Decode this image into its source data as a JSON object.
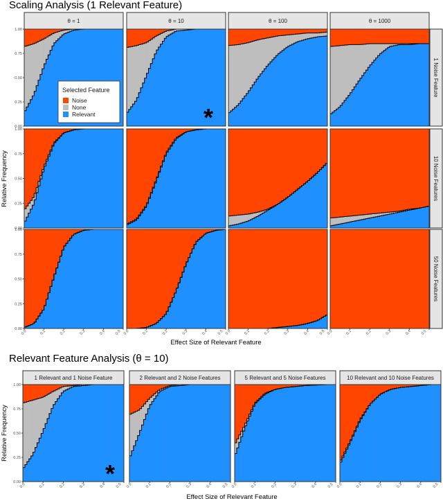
{
  "colors": {
    "Noise": "#FF4500",
    "None": "#BEBEBE",
    "Relevant": "#1E90FF"
  },
  "chart_data": [
    {
      "type": "bar",
      "stacked": true,
      "title": "Scaling Analysis (1 Relevant Feature)",
      "xlabel": "Effect Size of Relevant Feature",
      "ylabel": "Relative Frequency",
      "xlim": [
        0,
        0.5
      ],
      "ylim": [
        0,
        1
      ],
      "x_ticks": [
        "0.0",
        "0.1",
        "0.2",
        "0.3",
        "0.4",
        "0.5"
      ],
      "y_ticks": [
        "0.00",
        "0.25",
        "0.50",
        "0.75",
        "1.00"
      ],
      "legend": {
        "title": "Selected Feature",
        "entries": [
          "Noise",
          "None",
          "Relevant"
        ],
        "placement": "inside top-left panel, bottom-right"
      },
      "column_facets": [
        "θ = 1",
        "θ = 10",
        "θ = 100",
        "θ = 1000"
      ],
      "row_facets": [
        "1 Noise Feature",
        "10 Noise Features",
        "50 Noise Features"
      ],
      "x_samples": [
        0,
        0.05,
        0.1,
        0.15,
        0.2,
        0.25,
        0.3,
        0.35,
        0.4,
        0.45,
        0.5
      ],
      "annotation": {
        "text": "*",
        "panel": "θ = 10, 1 Noise Feature"
      },
      "panels": [
        [
          {
            "relevant": [
              0.14,
              0.33,
              0.62,
              0.85,
              0.95,
              0.99,
              1,
              1,
              1,
              1,
              1
            ],
            "relevant_plus_none": [
              0.82,
              0.85,
              0.9,
              0.96,
              0.99,
              1,
              1,
              1,
              1,
              1,
              1
            ]
          },
          {
            "relevant": [
              0.13,
              0.27,
              0.52,
              0.77,
              0.92,
              0.98,
              0.99,
              1,
              1,
              1,
              1
            ],
            "relevant_plus_none": [
              0.81,
              0.83,
              0.86,
              0.93,
              0.98,
              1,
              1,
              1,
              1,
              1,
              1
            ]
          },
          {
            "relevant": [
              0.13,
              0.22,
              0.35,
              0.5,
              0.63,
              0.74,
              0.82,
              0.87,
              0.9,
              0.92,
              0.93
            ],
            "relevant_plus_none": [
              0.83,
              0.84,
              0.86,
              0.89,
              0.91,
              0.93,
              0.94,
              0.95,
              0.96,
              0.96,
              0.97
            ]
          },
          {
            "relevant": [
              0.12,
              0.2,
              0.33,
              0.48,
              0.62,
              0.74,
              0.82,
              0.84,
              0.84,
              0.85,
              0.85
            ],
            "relevant_plus_none": [
              0.82,
              0.83,
              0.84,
              0.84,
              0.85,
              0.85,
              0.85,
              0.85,
              0.85,
              0.85,
              0.85
            ]
          }
        ],
        [
          {
            "relevant": [
              0.05,
              0.25,
              0.6,
              0.85,
              0.96,
              0.99,
              1,
              1,
              1,
              1,
              1
            ],
            "relevant_plus_none": [
              0.18,
              0.32,
              0.62,
              0.86,
              0.96,
              0.99,
              1,
              1,
              1,
              1,
              1
            ]
          },
          {
            "relevant": [
              0.03,
              0.08,
              0.22,
              0.48,
              0.75,
              0.9,
              0.97,
              0.99,
              1,
              1,
              1
            ],
            "relevant_plus_none": [
              0.04,
              0.09,
              0.23,
              0.49,
              0.76,
              0.91,
              0.97,
              0.99,
              1,
              1,
              1
            ]
          },
          {
            "relevant": [
              0.02,
              0.04,
              0.07,
              0.12,
              0.18,
              0.24,
              0.31,
              0.39,
              0.47,
              0.56,
              0.66
            ],
            "relevant_plus_none": [
              0.12,
              0.13,
              0.14,
              0.16,
              0.19,
              0.24,
              0.31,
              0.39,
              0.47,
              0.56,
              0.66
            ]
          },
          {
            "relevant": [
              0.02,
              0.04,
              0.06,
              0.08,
              0.1,
              0.12,
              0.14,
              0.16,
              0.18,
              0.2,
              0.22
            ],
            "relevant_plus_none": [
              0.1,
              0.11,
              0.12,
              0.13,
              0.14,
              0.15,
              0.16,
              0.17,
              0.19,
              0.2,
              0.22
            ]
          }
        ],
        [
          {
            "relevant": [
              0.01,
              0.05,
              0.2,
              0.52,
              0.82,
              0.95,
              0.99,
              1,
              1,
              1,
              1
            ],
            "relevant_plus_none": [
              0.01,
              0.05,
              0.2,
              0.52,
              0.82,
              0.95,
              0.99,
              1,
              1,
              1,
              1
            ]
          },
          {
            "relevant": [
              0,
              0,
              0.01,
              0.05,
              0.15,
              0.38,
              0.65,
              0.87,
              0.96,
              0.99,
              1
            ],
            "relevant_plus_none": [
              0,
              0,
              0.01,
              0.05,
              0.15,
              0.38,
              0.65,
              0.87,
              0.96,
              0.99,
              1
            ]
          },
          {
            "relevant": [
              0,
              0,
              0,
              0,
              0,
              0.01,
              0.02,
              0.03,
              0.05,
              0.08,
              0.14
            ],
            "relevant_plus_none": [
              0,
              0,
              0,
              0,
              0,
              0.01,
              0.02,
              0.03,
              0.05,
              0.08,
              0.14
            ]
          },
          {
            "relevant": [
              0,
              0,
              0,
              0,
              0,
              0,
              0,
              0,
              0,
              0,
              0
            ],
            "relevant_plus_none": [
              0,
              0,
              0,
              0,
              0,
              0,
              0,
              0,
              0,
              0,
              0
            ]
          }
        ]
      ]
    },
    {
      "type": "bar",
      "stacked": true,
      "title": "Relevant Feature Analysis (θ = 10)",
      "xlabel": "Effect Size of Relevant Feature",
      "ylabel": "Relative Frequency",
      "xlim": [
        0,
        0.5
      ],
      "ylim": [
        0,
        1
      ],
      "x_ticks": [
        "0.0",
        "0.1",
        "0.2",
        "0.3",
        "0.4",
        "0.5"
      ],
      "y_ticks": [
        "0.00",
        "0.25",
        "0.50",
        "0.75",
        "1.00"
      ],
      "column_facets": [
        "1 Relevant and 1 Noise Feature",
        "2 Relevant and 2 Noise Features",
        "5 Relevant and 5 Noise Features",
        "10 Relevant and 10 Noise Features"
      ],
      "x_samples": [
        0,
        0.05,
        0.1,
        0.15,
        0.2,
        0.25,
        0.3,
        0.35,
        0.4,
        0.45,
        0.5
      ],
      "annotation": {
        "text": "*",
        "panel": "1 Relevant and 1 Noise Feature"
      },
      "panels": [
        {
          "relevant": [
            0.13,
            0.28,
            0.52,
            0.78,
            0.93,
            0.98,
            0.99,
            1,
            1,
            1,
            1
          ],
          "relevant_plus_none": [
            0.81,
            0.84,
            0.87,
            0.93,
            0.98,
            0.99,
            1,
            1,
            1,
            1,
            1
          ]
        },
        {
          "relevant": [
            0.24,
            0.5,
            0.78,
            0.93,
            0.98,
            0.99,
            1,
            1,
            1,
            1,
            1
          ],
          "relevant_plus_none": [
            0.69,
            0.74,
            0.86,
            0.95,
            0.99,
            1,
            1,
            1,
            1,
            1,
            1
          ]
        },
        {
          "relevant": [
            0.26,
            0.55,
            0.8,
            0.9,
            0.95,
            0.97,
            0.98,
            0.99,
            0.995,
            1,
            1
          ],
          "relevant_plus_none": [
            0.38,
            0.58,
            0.81,
            0.91,
            0.95,
            0.97,
            0.98,
            0.99,
            0.995,
            1,
            1
          ]
        },
        {
          "relevant": [
            0.18,
            0.4,
            0.63,
            0.8,
            0.9,
            0.95,
            0.97,
            0.98,
            0.99,
            1,
            1
          ],
          "relevant_plus_none": [
            0.2,
            0.41,
            0.64,
            0.8,
            0.9,
            0.95,
            0.97,
            0.98,
            0.99,
            1,
            1
          ]
        }
      ]
    }
  ]
}
